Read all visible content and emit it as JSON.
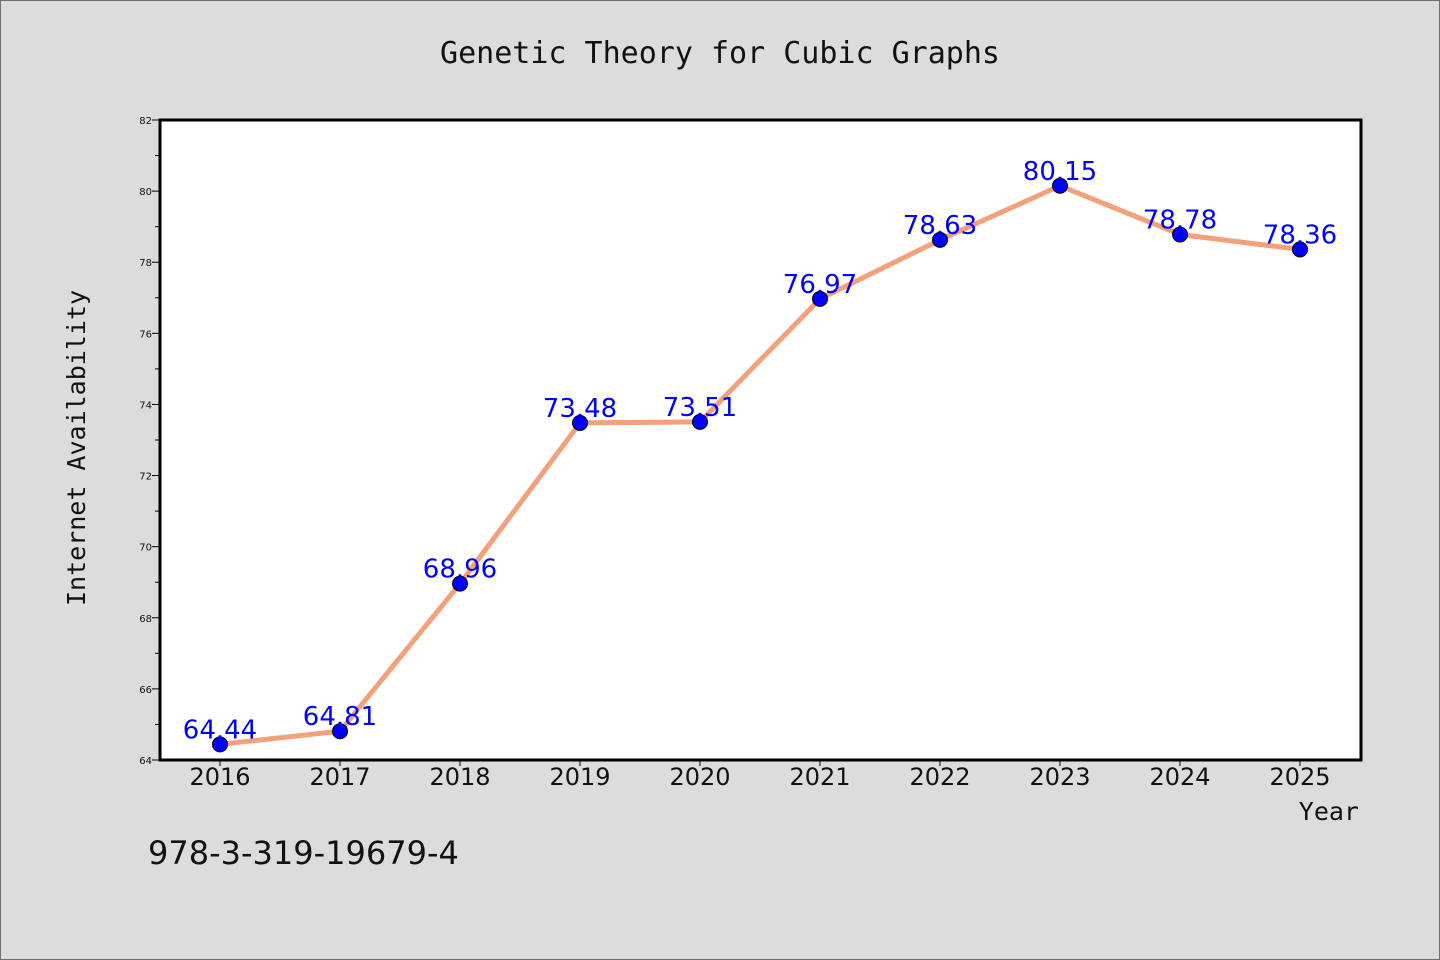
{
  "chart_data": {
    "type": "line",
    "title": "Genetic Theory for Cubic Graphs",
    "xlabel": "Year",
    "ylabel": "Internet Availability",
    "categories": [
      "2016",
      "2017",
      "2018",
      "2019",
      "2020",
      "2021",
      "2022",
      "2023",
      "2024",
      "2025"
    ],
    "series": [
      {
        "values": [
          64.44,
          64.81,
          68.96,
          73.48,
          73.51,
          76.97,
          78.63,
          80.15,
          78.78,
          78.36
        ],
        "data_labels": [
          "64.44",
          "64.81",
          "68.96",
          "73.48",
          "73.51",
          "76.97",
          "78.63",
          "80.15",
          "78.78",
          "78.36"
        ],
        "line_color": "#f4a07a",
        "marker_color": "#0000ff"
      }
    ],
    "ylim": [
      64,
      82
    ],
    "yticks": [
      "64",
      "66",
      "68",
      "70",
      "72",
      "74",
      "76",
      "78",
      "80",
      "82"
    ],
    "grid": false,
    "background": "#ffffff"
  },
  "footer": {
    "code": "978-3-319-19679-4"
  }
}
